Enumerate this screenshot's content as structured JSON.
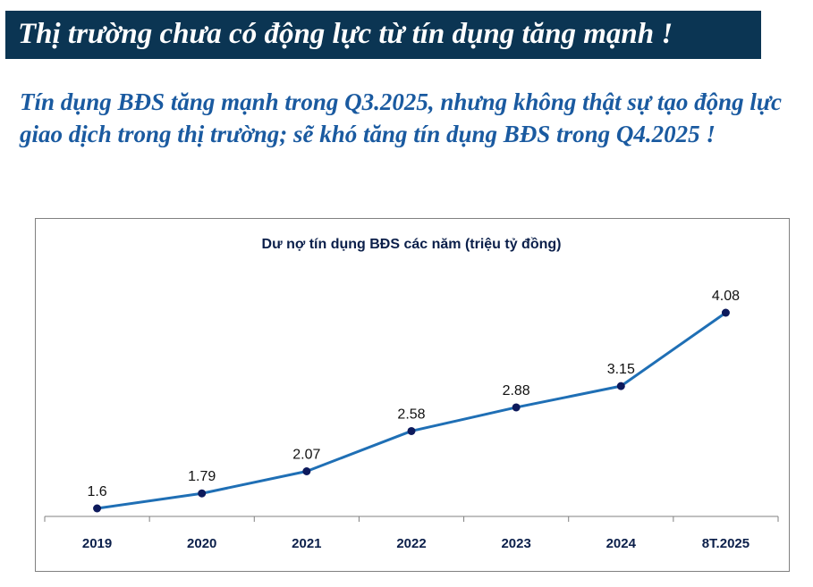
{
  "banner": {
    "title": "Thị trường chưa có động lực từ tín dụng tăng mạnh !",
    "background": "#0b3553"
  },
  "subtitle": {
    "text": "Tín dụng BĐS tăng mạnh trong Q3.2025, nhưng không thật sự tạo động lực giao dịch trong thị trường; sẽ khó tăng tín dụng BĐS trong Q4.2025 !",
    "color": "#1a5aa0"
  },
  "chart_data": {
    "type": "line",
    "title": "Dư nợ tín dụng BĐS các năm (triệu tỷ đồng)",
    "categories": [
      "2019",
      "2020",
      "2021",
      "2022",
      "2023",
      "2024",
      "8T.2025"
    ],
    "series": [
      {
        "name": "Dư nợ tín dụng BĐS",
        "values": [
          1.6,
          1.79,
          2.07,
          2.58,
          2.88,
          3.15,
          4.08
        ],
        "labels": [
          "1.6",
          "1.79",
          "2.07",
          "2.58",
          "2.88",
          "3.15",
          "4.08"
        ],
        "color": "#1f6fb5",
        "marker_color": "#0d1a5c"
      }
    ],
    "xlabel": "",
    "ylabel": "",
    "ylim": [
      1.6,
      4.08
    ],
    "grid": false,
    "legend": "none"
  }
}
